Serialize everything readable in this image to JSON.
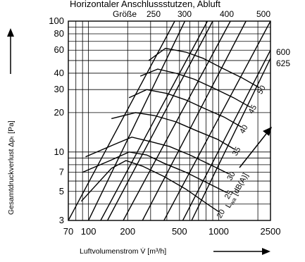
{
  "chart_data": {
    "type": "line",
    "title": "Horizontaler Anschlussstutzen, Abluft",
    "xlabel": "Luftvolumenstrom  V̇  [m³/h]",
    "ylabel": "Gesamtdruckverlust  Δpₜ  [Pa]",
    "xscale": "log",
    "yscale": "log",
    "xlim": [
      70,
      2500
    ],
    "ylim": [
      3,
      100
    ],
    "grid": true,
    "x_ticks": [
      "70",
      "100",
      "200",
      "500",
      "1000",
      "2500"
    ],
    "y_ticks": [
      "3",
      "5",
      "7",
      "10",
      "20",
      "30",
      "40",
      "60",
      "80",
      "100"
    ],
    "size_label": "Größe",
    "sizes": [
      {
        "name": "",
        "label": "",
        "points": [
          [
            70,
            3
          ],
          [
            460,
            100
          ]
        ]
      },
      {
        "name": "",
        "label": "",
        "points": [
          [
            124,
            3
          ],
          [
            820,
            100
          ]
        ]
      },
      {
        "name": "",
        "label": "",
        "points": [
          [
            185,
            3
          ],
          [
            1230,
            100
          ]
        ]
      },
      {
        "name": "250",
        "label": "250",
        "points": [
          [
            100,
            3
          ],
          [
            550,
            100
          ]
        ]
      },
      {
        "name": "300",
        "label": "300",
        "points": [
          [
            140,
            3
          ],
          [
            900,
            100
          ]
        ]
      },
      {
        "name": "400",
        "label": "400",
        "points": [
          [
            260,
            3
          ],
          [
            1620,
            100
          ]
        ]
      },
      {
        "name": "500",
        "label": "500",
        "points": [
          [
            380,
            3
          ],
          [
            2500,
            100
          ]
        ]
      },
      {
        "name": "600",
        "label": "600",
        "points": [
          [
            530,
            3
          ],
          [
            2500,
            60
          ]
        ]
      },
      {
        "name": "625",
        "label": "625",
        "points": [
          [
            620,
            3
          ],
          [
            2500,
            52
          ]
        ]
      }
    ],
    "noise_label": "L",
    "noise_label_sub": "wa",
    "noise_unit": "[dB(A)]",
    "noise_levels": [
      {
        "value": "20",
        "points": [
          [
            88,
            4.2
          ],
          [
            150,
            7.5
          ],
          [
            194,
            8.6
          ],
          [
            260,
            7.8
          ],
          [
            380,
            6.5
          ],
          [
            560,
            5.2
          ],
          [
            820,
            4.0
          ],
          [
            1000,
            3.5
          ]
        ]
      },
      {
        "value": "25",
        "points": [
          [
            90,
            7.0
          ],
          [
            150,
            8.7
          ],
          [
            205,
            10.0
          ],
          [
            280,
            9.5
          ],
          [
            380,
            8.2
          ],
          [
            560,
            7.0
          ],
          [
            820,
            5.8
          ],
          [
            1150,
            4.9
          ]
        ]
      },
      {
        "value": "30",
        "points": [
          [
            95,
            9.2
          ],
          [
            160,
            11.5
          ],
          [
            215,
            13.0
          ],
          [
            300,
            12.0
          ],
          [
            420,
            11.0
          ],
          [
            600,
            9.5
          ],
          [
            860,
            8.0
          ],
          [
            1200,
            6.8
          ]
        ]
      },
      {
        "value": "35",
        "points": [
          [
            150,
            18.0
          ],
          [
            230,
            20.0
          ],
          [
            320,
            19.0
          ],
          [
            470,
            17.0
          ],
          [
            680,
            14.5
          ],
          [
            980,
            12.5
          ],
          [
            1320,
            10.5
          ]
        ]
      },
      {
        "value": "40",
        "points": [
          [
            205,
            26.0
          ],
          [
            280,
            30.0
          ],
          [
            400,
            28.0
          ],
          [
            560,
            25.0
          ],
          [
            780,
            21.5
          ],
          [
            1100,
            18.5
          ],
          [
            1500,
            15.5
          ]
        ]
      },
      {
        "value": "45",
        "points": [
          [
            250,
            38.0
          ],
          [
            340,
            43.0
          ],
          [
            470,
            40.0
          ],
          [
            650,
            36.0
          ],
          [
            900,
            31.0
          ],
          [
            1300,
            26.0
          ],
          [
            1750,
            22.0
          ]
        ]
      },
      {
        "value": "50",
        "points": [
          [
            290,
            50.0
          ],
          [
            390,
            62.0
          ],
          [
            560,
            58.0
          ],
          [
            760,
            52.0
          ],
          [
            1050,
            44.0
          ],
          [
            1500,
            37.0
          ],
          [
            2050,
            31.0
          ]
        ]
      }
    ]
  }
}
